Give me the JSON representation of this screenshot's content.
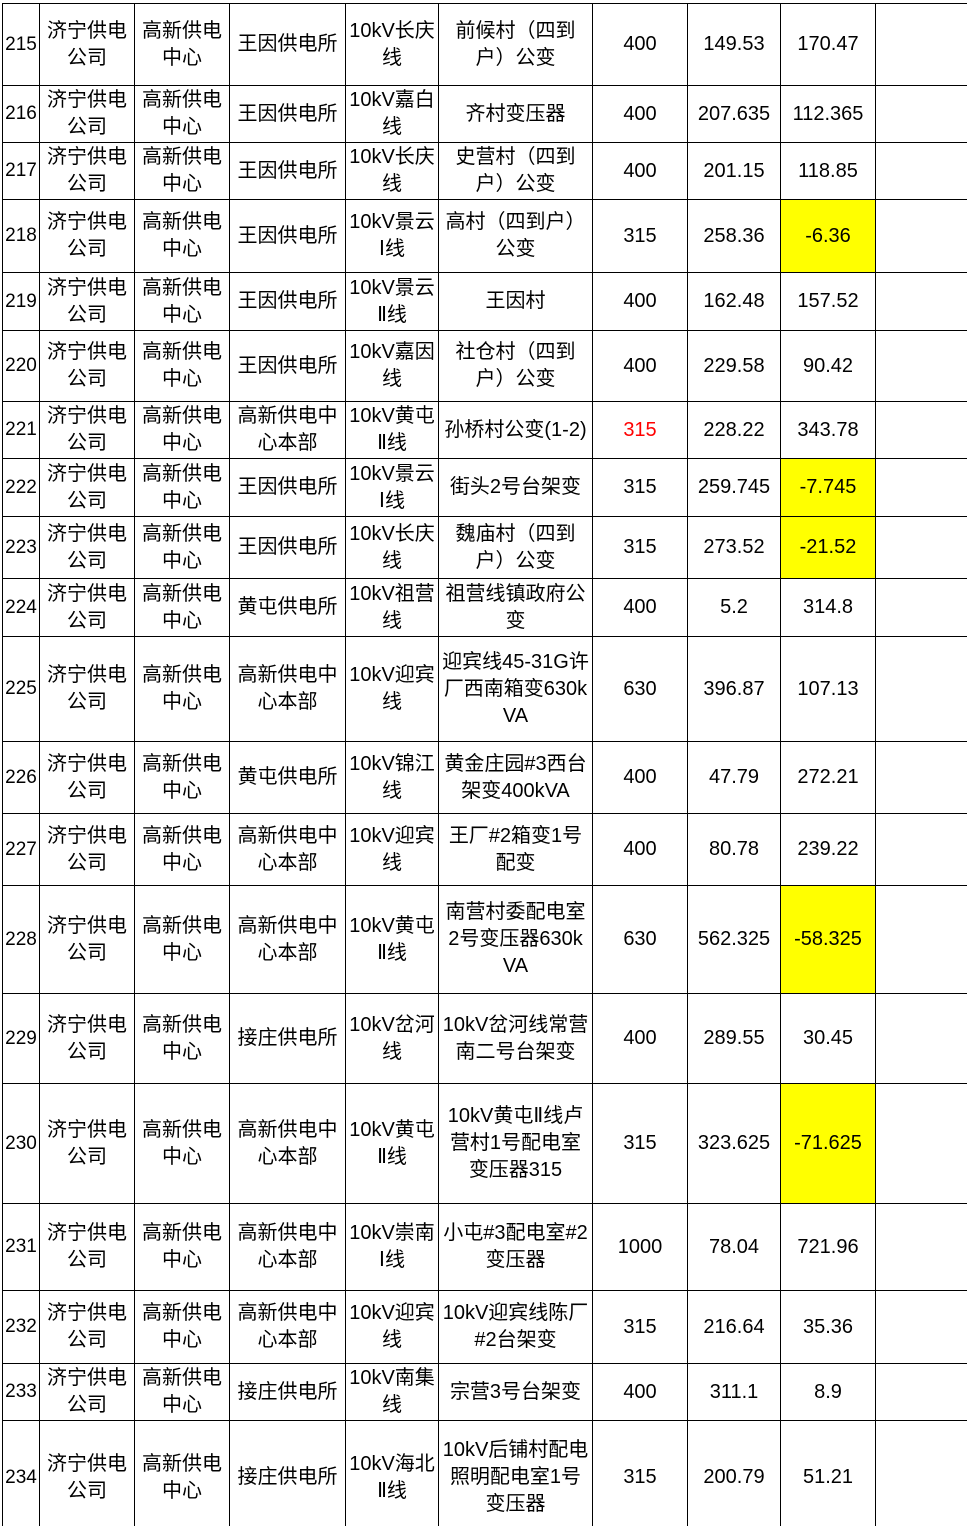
{
  "document": {
    "type": "power-distribution-transformer-load-table",
    "language": "zh-CN"
  },
  "colors": {
    "background": "#FFFFFF",
    "text": "#000000",
    "border": "#000000",
    "highlight_fill": "#FFFF00",
    "alert_text": "#FF0000"
  },
  "table": {
    "visible_row_range": "215-234",
    "rows": [
      {
        "no": "215",
        "company": "济宁供电公司",
        "center": "高新供电中心",
        "station": "王因供电所",
        "line": "10kV长庆线",
        "transformer": "前候村（四到户）公变",
        "capacity": "400",
        "capacity_red": false,
        "value1": "149.53",
        "value2": "170.47",
        "value2_highlighted": false,
        "note": ""
      },
      {
        "no": "216",
        "company": "济宁供电公司",
        "center": "高新供电中心",
        "station": "王因供电所",
        "line": "10kV嘉白线",
        "transformer": "齐村变压器",
        "capacity": "400",
        "capacity_red": false,
        "value1": "207.635",
        "value2": "112.365",
        "value2_highlighted": false,
        "note": ""
      },
      {
        "no": "217",
        "company": "济宁供电公司",
        "center": "高新供电中心",
        "station": "王因供电所",
        "line": "10kV长庆线",
        "transformer": "史营村（四到户）公变",
        "capacity": "400",
        "capacity_red": false,
        "value1": "201.15",
        "value2": "118.85",
        "value2_highlighted": false,
        "note": ""
      },
      {
        "no": "218",
        "company": "济宁供电公司",
        "center": "高新供电中心",
        "station": "王因供电所",
        "line": "10kV景云Ⅰ线",
        "transformer": "高村（四到户）公变",
        "capacity": "315",
        "capacity_red": false,
        "value1": "258.36",
        "value2": "-6.36",
        "value2_highlighted": true,
        "note": ""
      },
      {
        "no": "219",
        "company": "济宁供电公司",
        "center": "高新供电中心",
        "station": "王因供电所",
        "line": "10kV景云Ⅱ线",
        "transformer": "王因村",
        "capacity": "400",
        "capacity_red": false,
        "value1": "162.48",
        "value2": "157.52",
        "value2_highlighted": false,
        "note": ""
      },
      {
        "no": "220",
        "company": "济宁供电公司",
        "center": "高新供电中心",
        "station": "王因供电所",
        "line": "10kV嘉因线",
        "transformer": "社仓村（四到户）公变",
        "capacity": "400",
        "capacity_red": false,
        "value1": "229.58",
        "value2": "90.42",
        "value2_highlighted": false,
        "note": ""
      },
      {
        "no": "221",
        "company": "济宁供电公司",
        "center": "高新供电中心",
        "station": "高新供电中心本部",
        "line": "10kV黄屯Ⅱ线",
        "transformer": "孙桥村公变(1-2)",
        "capacity": "315",
        "capacity_red": true,
        "value1": "228.22",
        "value2": "343.78",
        "value2_highlighted": false,
        "note": ""
      },
      {
        "no": "222",
        "company": "济宁供电公司",
        "center": "高新供电中心",
        "station": "王因供电所",
        "line": "10kV景云Ⅰ线",
        "transformer": "街头2号台架变",
        "capacity": "315",
        "capacity_red": false,
        "value1": "259.745",
        "value2": "-7.745",
        "value2_highlighted": true,
        "note": ""
      },
      {
        "no": "223",
        "company": "济宁供电公司",
        "center": "高新供电中心",
        "station": "王因供电所",
        "line": "10kV长庆线",
        "transformer": "魏庙村（四到户）公变",
        "capacity": "315",
        "capacity_red": false,
        "value1": "273.52",
        "value2": "-21.52",
        "value2_highlighted": true,
        "note": ""
      },
      {
        "no": "224",
        "company": "济宁供电公司",
        "center": "高新供电中心",
        "station": "黄屯供电所",
        "line": "10kV祖营线",
        "transformer": "祖营线镇政府公变",
        "capacity": "400",
        "capacity_red": false,
        "value1": "5.2",
        "value2": "314.8",
        "value2_highlighted": false,
        "note": ""
      },
      {
        "no": "225",
        "company": "济宁供电公司",
        "center": "高新供电中心",
        "station": "高新供电中心本部",
        "line": "10kV迎宾线",
        "transformer": "迎宾线45-31G许厂西南箱变630kVA",
        "capacity": "630",
        "capacity_red": false,
        "value1": "396.87",
        "value2": "107.13",
        "value2_highlighted": false,
        "note": ""
      },
      {
        "no": "226",
        "company": "济宁供电公司",
        "center": "高新供电中心",
        "station": "黄屯供电所",
        "line": "10kV锦江线",
        "transformer": "黄金庄园#3西台架变400kVA",
        "capacity": "400",
        "capacity_red": false,
        "value1": "47.79",
        "value2": "272.21",
        "value2_highlighted": false,
        "note": ""
      },
      {
        "no": "227",
        "company": "济宁供电公司",
        "center": "高新供电中心",
        "station": "高新供电中心本部",
        "line": "10kV迎宾线",
        "transformer": "王厂#2箱变1号配变",
        "capacity": "400",
        "capacity_red": false,
        "value1": "80.78",
        "value2": "239.22",
        "value2_highlighted": false,
        "note": ""
      },
      {
        "no": "228",
        "company": "济宁供电公司",
        "center": "高新供电中心",
        "station": "高新供电中心本部",
        "line": "10kV黄屯Ⅱ线",
        "transformer": "南营村委配电室2号变压器630kVA",
        "capacity": "630",
        "capacity_red": false,
        "value1": "562.325",
        "value2": "-58.325",
        "value2_highlighted": true,
        "note": ""
      },
      {
        "no": "229",
        "company": "济宁供电公司",
        "center": "高新供电中心",
        "station": "接庄供电所",
        "line": "10kV岔河线",
        "transformer": "10kV岔河线常营南二号台架变",
        "capacity": "400",
        "capacity_red": false,
        "value1": "289.55",
        "value2": "30.45",
        "value2_highlighted": false,
        "note": ""
      },
      {
        "no": "230",
        "company": "济宁供电公司",
        "center": "高新供电中心",
        "station": "高新供电中心本部",
        "line": "10kV黄屯Ⅱ线",
        "transformer": "10kV黄屯Ⅱ线卢营村1号配电室变压器315",
        "capacity": "315",
        "capacity_red": false,
        "value1": "323.625",
        "value2": "-71.625",
        "value2_highlighted": true,
        "note": ""
      },
      {
        "no": "231",
        "company": "济宁供电公司",
        "center": "高新供电中心",
        "station": "高新供电中心本部",
        "line": "10kV崇南Ⅰ线",
        "transformer": "小屯#3配电室#2变压器",
        "capacity": "1000",
        "capacity_red": false,
        "value1": "78.04",
        "value2": "721.96",
        "value2_highlighted": false,
        "note": ""
      },
      {
        "no": "232",
        "company": "济宁供电公司",
        "center": "高新供电中心",
        "station": "高新供电中心本部",
        "line": "10kV迎宾线",
        "transformer": "10kV迎宾线陈厂#2台架变",
        "capacity": "315",
        "capacity_red": false,
        "value1": "216.64",
        "value2": "35.36",
        "value2_highlighted": false,
        "note": ""
      },
      {
        "no": "233",
        "company": "济宁供电公司",
        "center": "高新供电中心",
        "station": "接庄供电所",
        "line": "10kV南集线",
        "transformer": "宗营3号台架变",
        "capacity": "400",
        "capacity_red": false,
        "value1": "311.1",
        "value2": "8.9",
        "value2_highlighted": false,
        "note": ""
      },
      {
        "no": "234",
        "company": "济宁供电公司",
        "center": "高新供电中心",
        "station": "接庄供电所",
        "line": "10kV海北Ⅱ线",
        "transformer": "10kV后铺村配电照明配电室1号变压器",
        "capacity": "315",
        "capacity_red": false,
        "value1": "200.79",
        "value2": "51.21",
        "value2_highlighted": false,
        "note": ""
      }
    ]
  }
}
